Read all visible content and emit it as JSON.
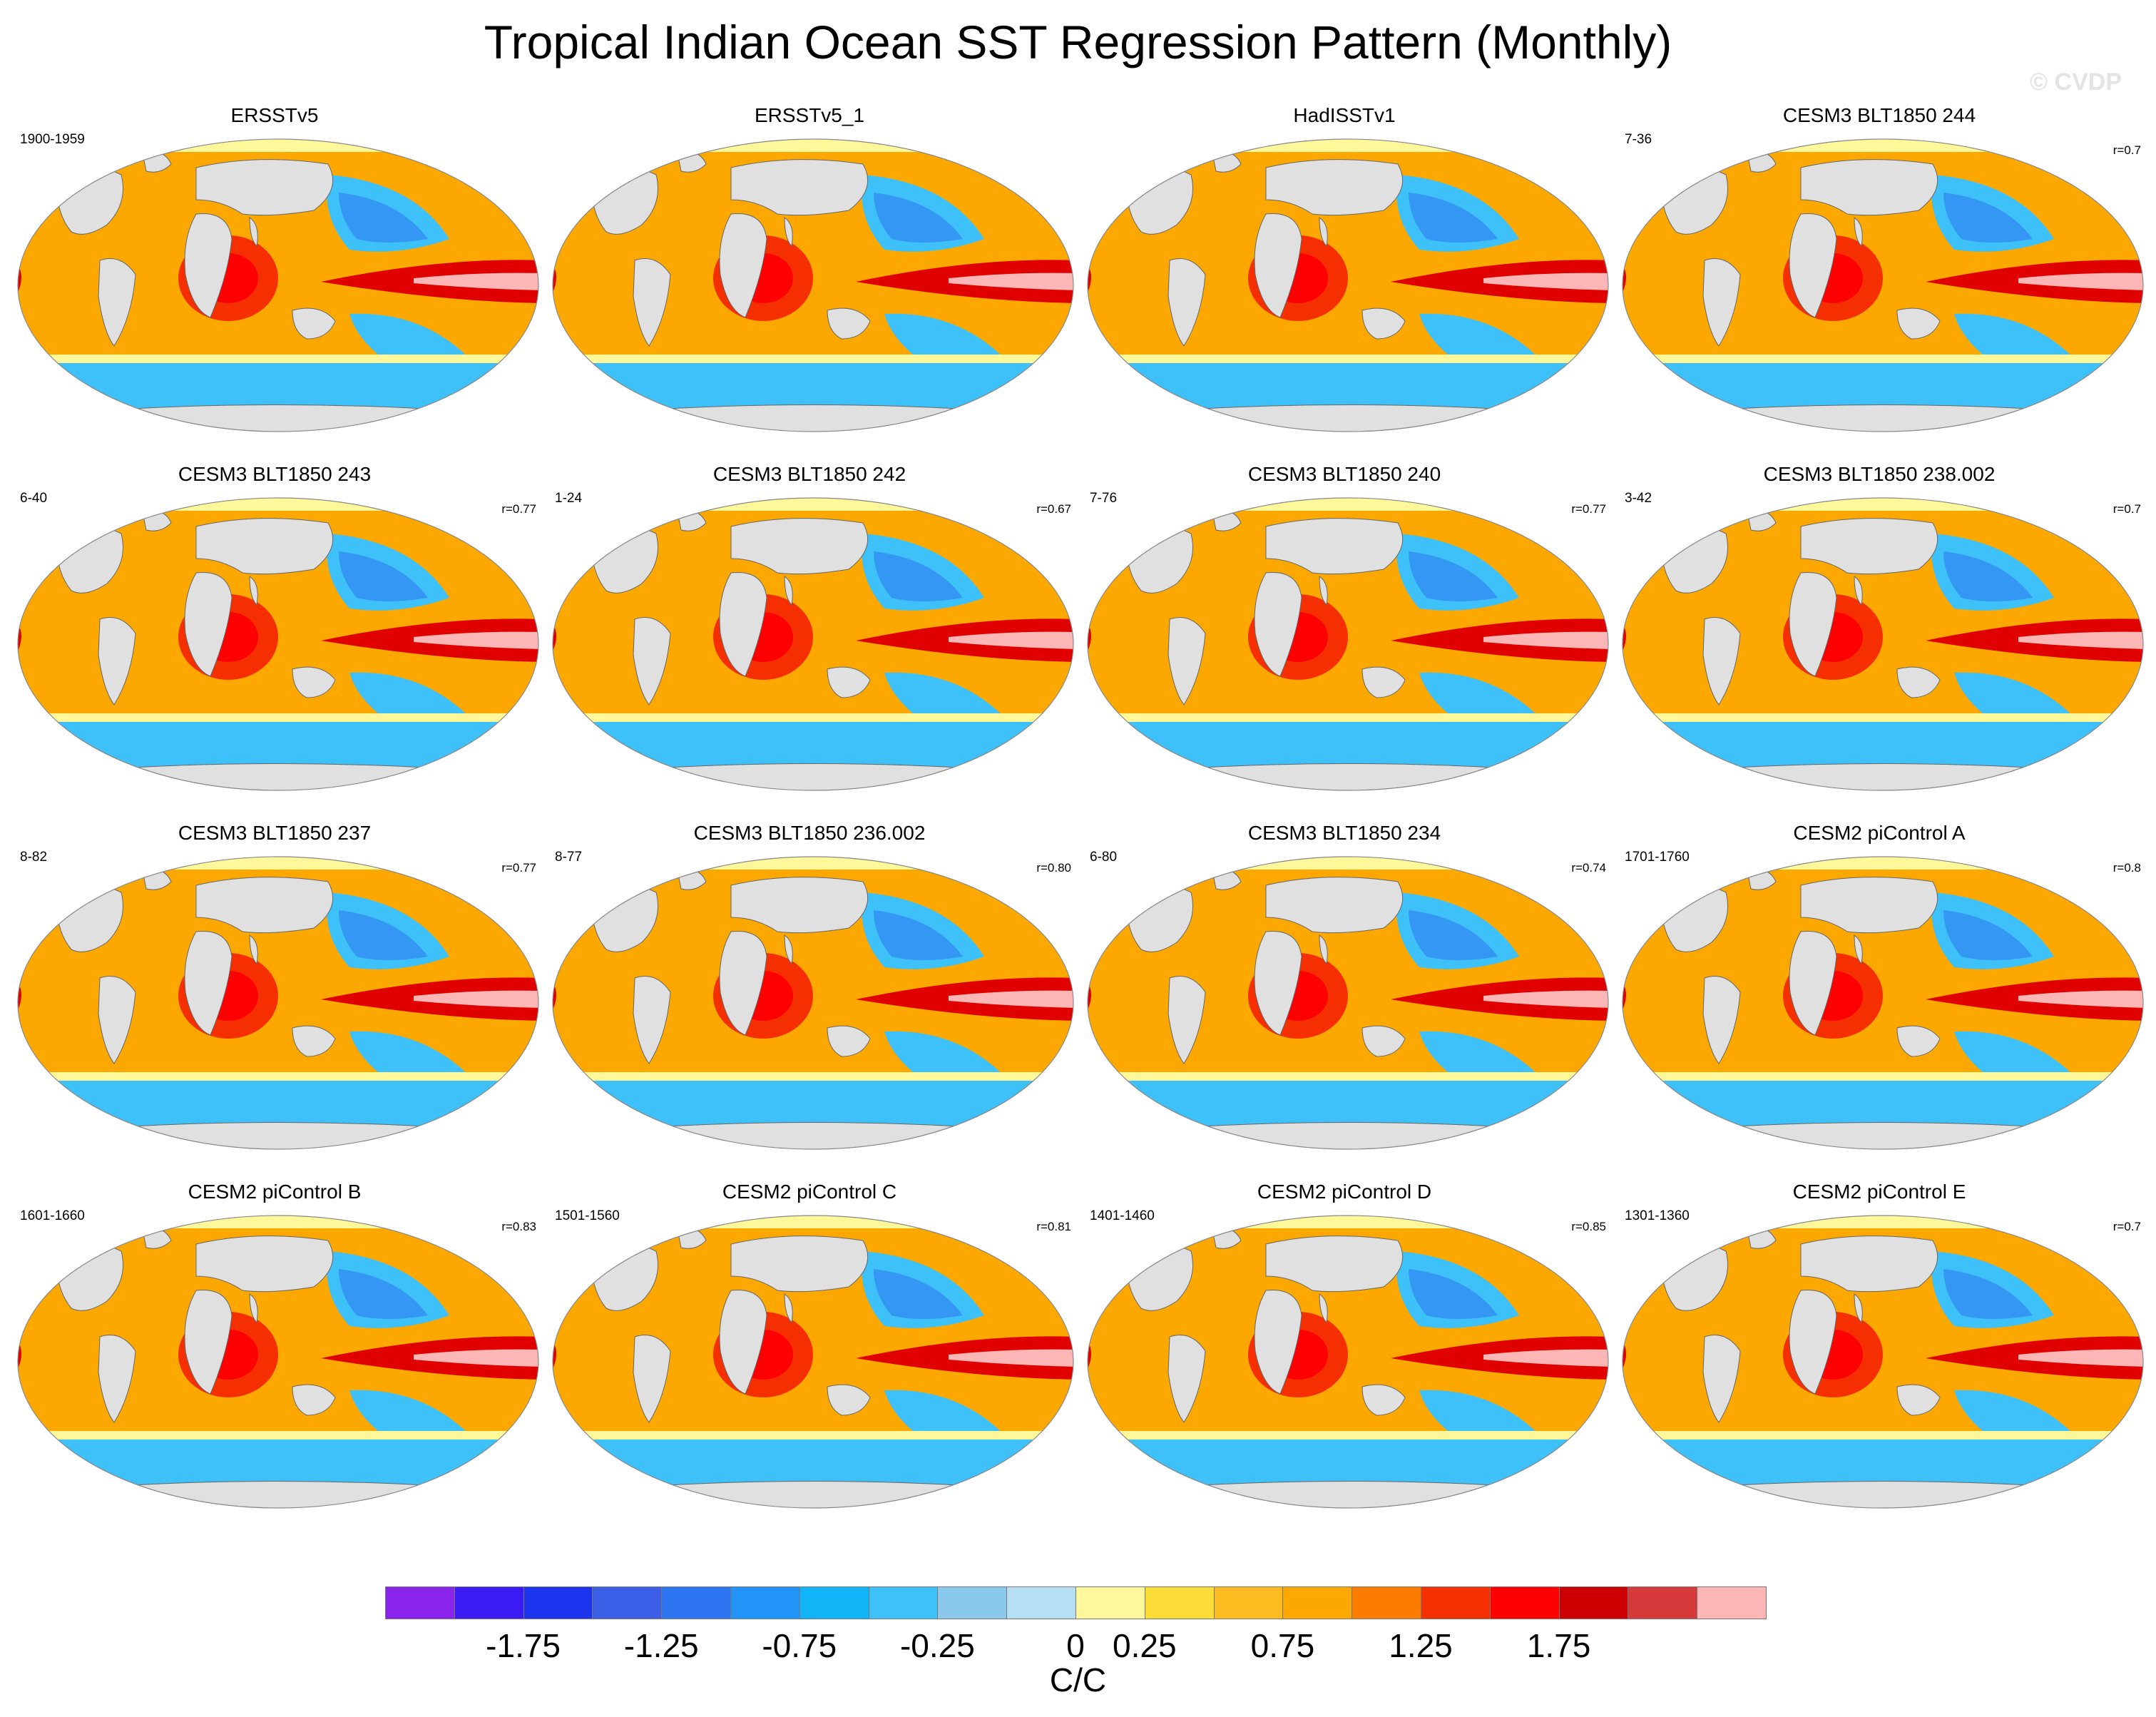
{
  "title": "Tropical Indian Ocean SST Regression Pattern (Monthly)",
  "watermark": "© CVDP",
  "map": {
    "projection": "robinson",
    "ocean_color": "#ffffff",
    "land_color": "#e0e0e0",
    "colors": {
      "tropical_indian_ocean": "#f52f00",
      "eastern_pacific": "#e00000",
      "eastern_pacific_core": "#fcb6b6",
      "north_pacific": "#3ec0f8",
      "southern_ocean": "#3ec0f8",
      "atlantic": "#fca800",
      "arctic": "#fff89a"
    }
  },
  "panels": [
    {
      "title": "ERSSTv5",
      "years": "1900-1959",
      "corr": ""
    },
    {
      "title": "ERSSTv5_1",
      "years": "",
      "corr": ""
    },
    {
      "title": "HadISSTv1",
      "years": "",
      "corr": ""
    },
    {
      "title": "CESM3 BLT1850 244",
      "years": "7-36",
      "corr": "r=0.7"
    },
    {
      "title": "CESM3 BLT1850 243",
      "years": "6-40",
      "corr": "r=0.77"
    },
    {
      "title": "CESM3 BLT1850 242",
      "years": "1-24",
      "corr": "r=0.67"
    },
    {
      "title": "CESM3 BLT1850 240",
      "years": "7-76",
      "corr": "r=0.77"
    },
    {
      "title": "CESM3 BLT1850 238.002",
      "years": "3-42",
      "corr": "r=0.7"
    },
    {
      "title": "CESM3 BLT1850 237",
      "years": "8-82",
      "corr": "r=0.77"
    },
    {
      "title": "CESM3 BLT1850 236.002",
      "years": "8-77",
      "corr": "r=0.80"
    },
    {
      "title": "CESM3 BLT1850 234",
      "years": "6-80",
      "corr": "r=0.74"
    },
    {
      "title": "CESM2 piControl A",
      "years": "1701-1760",
      "corr": "r=0.8"
    },
    {
      "title": "CESM2 piControl B",
      "years": "1601-1660",
      "corr": "r=0.83"
    },
    {
      "title": "CESM2 piControl C",
      "years": "1501-1560",
      "corr": "r=0.81"
    },
    {
      "title": "CESM2 piControl D",
      "years": "1401-1460",
      "corr": "r=0.85"
    },
    {
      "title": "CESM2 piControl E",
      "years": "1301-1360",
      "corr": "r=0.7"
    }
  ],
  "colorbar": {
    "unit": "C/C",
    "labels": [
      "-1.75",
      "-1.25",
      "-0.75",
      "-0.25",
      "0",
      "0.25",
      "0.75",
      "1.25",
      "1.75"
    ],
    "colors": [
      "#8a23ec",
      "#3b1bf3",
      "#1d34ef",
      "#3a5fe6",
      "#2d75f0",
      "#2293f7",
      "#10b4f7",
      "#3ec0f8",
      "#8ac9ec",
      "#b7dff3",
      "#fff89a",
      "#fcdc37",
      "#fcbc20",
      "#fca800",
      "#fc7c00",
      "#f52f00",
      "#ff0000",
      "#cc0000",
      "#d73a3a",
      "#fcb6b6"
    ]
  }
}
